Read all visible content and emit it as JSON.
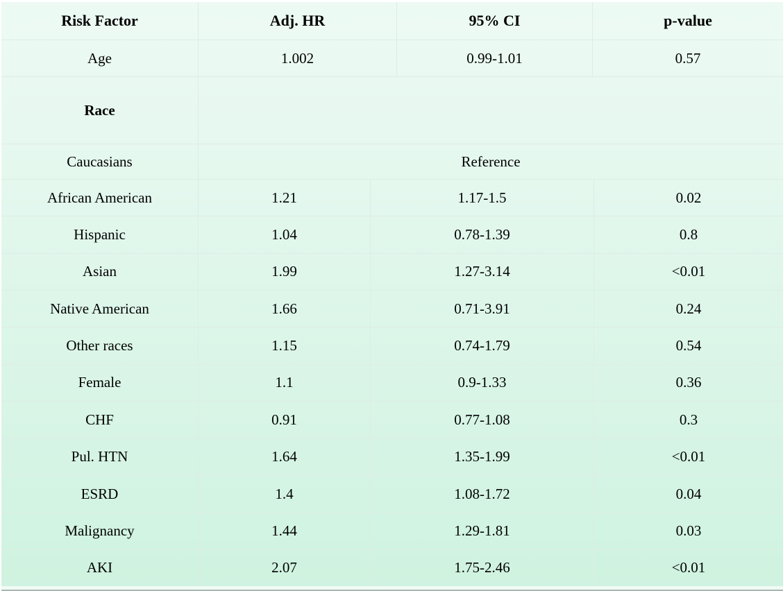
{
  "chart_data": {
    "type": "table",
    "title": "",
    "columns": [
      "Risk Factor",
      "Adj. HR",
      "95% CI",
      "p-value"
    ],
    "rows": [
      {
        "label": "Age",
        "adj_hr": "1.002",
        "ci": "0.99-1.01",
        "p": "0.57"
      },
      {
        "label": "Race",
        "kind": "section"
      },
      {
        "label": "Caucasians",
        "kind": "reference",
        "merged_value": "Reference"
      },
      {
        "label": "African American",
        "adj_hr": "1.21",
        "ci": "1.17-1.5",
        "p": "0.02"
      },
      {
        "label": "Hispanic",
        "adj_hr": "1.04",
        "ci": "0.78-1.39",
        "p": "0.8"
      },
      {
        "label": "Asian",
        "adj_hr": "1.99",
        "ci": "1.27-3.14",
        "p": "<0.01"
      },
      {
        "label": "Native American",
        "adj_hr": "1.66",
        "ci": "0.71-3.91",
        "p": "0.24"
      },
      {
        "label": "Other races",
        "adj_hr": "1.15",
        "ci": "0.74-1.79",
        "p": "0.54"
      },
      {
        "label": "Female",
        "adj_hr": "1.1",
        "ci": "0.9-1.33",
        "p": "0.36"
      },
      {
        "label": "CHF",
        "adj_hr": "0.91",
        "ci": "0.77-1.08",
        "p": "0.3"
      },
      {
        "label": "Pul. HTN",
        "adj_hr": "1.64",
        "ci": "1.35-1.99",
        "p": "<0.01"
      },
      {
        "label": "ESRD",
        "adj_hr": "1.4",
        "ci": "1.08-1.72",
        "p": "0.04"
      },
      {
        "label": "Malignancy",
        "adj_hr": "1.44",
        "ci": "1.29-1.81",
        "p": "0.03"
      },
      {
        "label": "AKI",
        "adj_hr": "2.07",
        "ci": "1.75-2.46",
        "p": "<0.01"
      }
    ]
  },
  "colors": {
    "bg_top": "#edfaf4",
    "bg_mid": "#def6ea",
    "bg_bottom": "#cff3e0",
    "grid_line": "#dfece6",
    "footer_strip": "#f1faf5",
    "bottom_edge": "#a8b8b0",
    "text": "#000000"
  }
}
